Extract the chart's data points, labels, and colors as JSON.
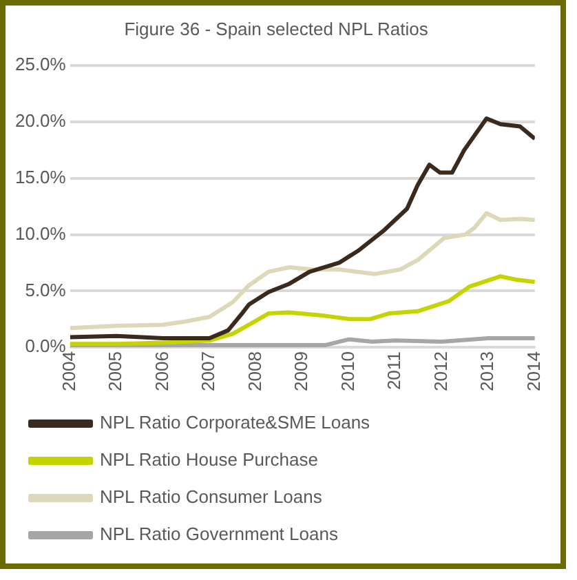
{
  "chart_data": {
    "type": "line",
    "title": "Figure 36 - Spain selected NPL Ratios",
    "xlim": [
      2004,
      2014
    ],
    "xticks": [
      2004,
      2005,
      2006,
      2007,
      2008,
      2009,
      2010,
      2011,
      2012,
      2013,
      2014
    ],
    "ylim": [
      0,
      25
    ],
    "yticks": [
      {
        "value": 0,
        "label": "0.0%"
      },
      {
        "value": 5,
        "label": "5.0%"
      },
      {
        "value": 10,
        "label": "10.0%"
      },
      {
        "value": 15,
        "label": "15.0%"
      },
      {
        "value": 20,
        "label": "20.0%"
      },
      {
        "value": 25,
        "label": "25.0%"
      }
    ],
    "grid": "y",
    "legend": "bottom",
    "marker": "none",
    "line_style": "solid",
    "series": [
      {
        "name": "NPL Ratio Corporate&SME Loans",
        "color": "#3a2a1e",
        "x": [
          2004,
          2005,
          2006,
          2007,
          2007.4,
          2007.7,
          2007.85,
          2008.27,
          2008.7,
          2009.15,
          2009.79,
          2010.21,
          2010.76,
          2011.25,
          2011.48,
          2011.73,
          2011.96,
          2012.22,
          2012.48,
          2012.96,
          2013.26,
          2013.68,
          2014
        ],
        "values": [
          0.9,
          1.0,
          0.8,
          0.8,
          1.5,
          3.0,
          3.8,
          4.9,
          5.6,
          6.7,
          7.5,
          8.6,
          10.4,
          12.3,
          14.4,
          16.2,
          15.5,
          15.5,
          17.5,
          20.3,
          19.8,
          19.6,
          18.5
        ]
      },
      {
        "name": "NPL Ratio House Purchase",
        "color": "#c3d400",
        "x": [
          2004,
          2005,
          2006,
          2007,
          2007.5,
          2007.85,
          2008.27,
          2008.7,
          2009.47,
          2010.02,
          2010.45,
          2010.86,
          2011.48,
          2012.15,
          2012.6,
          2013.26,
          2013.6,
          2014
        ],
        "values": [
          0.3,
          0.3,
          0.4,
          0.6,
          1.2,
          2.0,
          3.0,
          3.1,
          2.8,
          2.5,
          2.5,
          3.0,
          3.2,
          4.1,
          5.4,
          6.3,
          6.0,
          5.8
        ]
      },
      {
        "name": "NPL Ratio Consumer Loans",
        "color": "#ddd8b8",
        "x": [
          2004,
          2005,
          2006,
          2006.5,
          2007,
          2007.5,
          2007.85,
          2008.27,
          2008.72,
          2009.2,
          2009.8,
          2010.55,
          2011.1,
          2011.5,
          2012.05,
          2012.5,
          2012.7,
          2012.96,
          2013.26,
          2013.68,
          2014
        ],
        "values": [
          1.7,
          1.9,
          2.0,
          2.3,
          2.7,
          4.0,
          5.5,
          6.7,
          7.1,
          6.9,
          6.9,
          6.5,
          6.9,
          7.8,
          9.7,
          10.0,
          10.6,
          11.9,
          11.3,
          11.4,
          11.3
        ]
      },
      {
        "name": "NPL Ratio Government Loans",
        "color": "#a6a6a6",
        "x": [
          2004,
          2006,
          2008,
          2009.5,
          2010,
          2010.5,
          2011,
          2012,
          2013,
          2014
        ],
        "values": [
          0.2,
          0.2,
          0.2,
          0.2,
          0.7,
          0.5,
          0.6,
          0.5,
          0.8,
          0.8
        ]
      }
    ]
  }
}
